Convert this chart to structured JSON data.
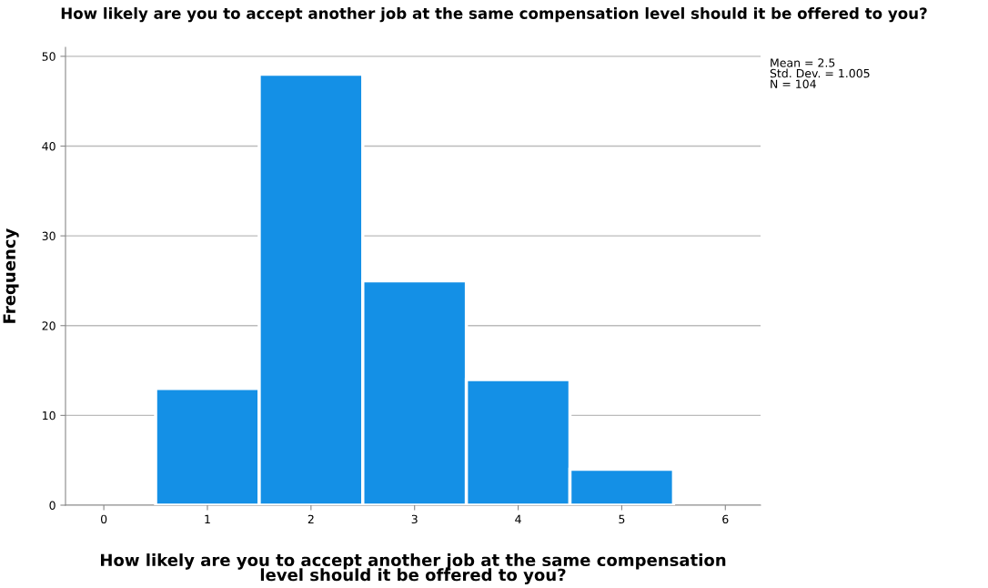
{
  "chart_data": {
    "type": "histogram",
    "title": "How likely are you to accept another job at the same compensation level should it be offered to you?",
    "xlabel": "How likely are you to accept another job at the same compensation\nlevel should it be offered to you?",
    "ylabel": "Frequency",
    "bins": [
      0.5,
      1.5,
      2.5,
      3.5,
      4.5,
      5.5
    ],
    "values": [
      13,
      48,
      25,
      14,
      4
    ],
    "color": "#1490e6",
    "xlim": [
      -0.37,
      6.34
    ],
    "xticks": [
      0,
      1,
      2,
      3,
      4,
      5,
      6
    ],
    "ylim": [
      0,
      51
    ],
    "yticks": [
      0,
      10,
      20,
      30,
      40,
      50
    ],
    "grid": "y",
    "legend": false,
    "annotations": [
      "Mean = 2.5\nStd. Dev. = 1.005\nN = 104"
    ]
  }
}
